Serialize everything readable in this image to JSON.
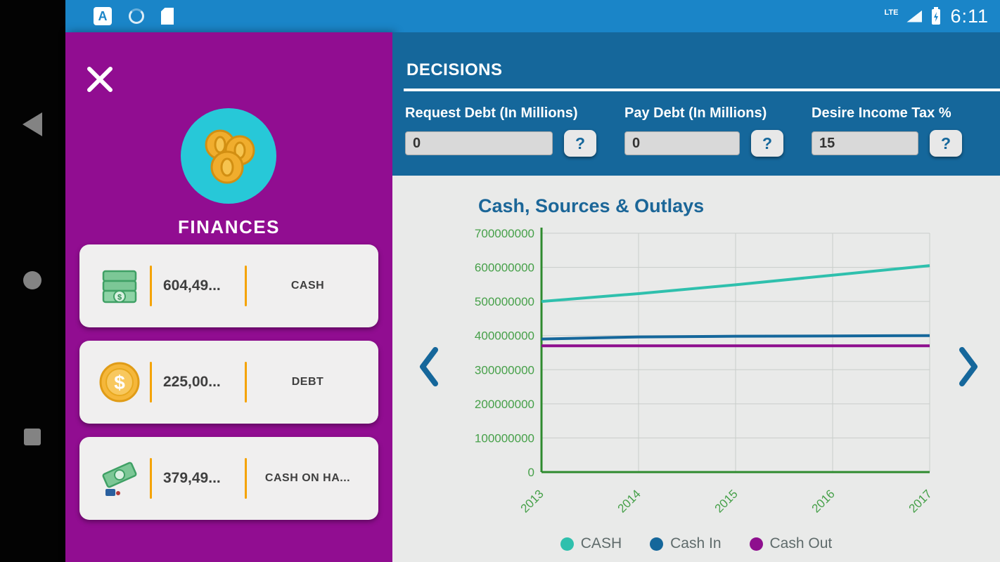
{
  "status_bar": {
    "time": "6:11",
    "network": "LTE"
  },
  "drawer": {
    "title": "FINANCES",
    "cards": [
      {
        "icon": "cash-bills-icon",
        "value": "604,49...",
        "label": "CASH"
      },
      {
        "icon": "debt-coin-icon",
        "value": "225,00...",
        "label": "DEBT"
      },
      {
        "icon": "cash-on-hand-icon",
        "value": "379,49...",
        "label": "CASH ON HA..."
      }
    ]
  },
  "decisions": {
    "title": "DECISIONS",
    "fields": [
      {
        "label": "Request Debt (In Millions)",
        "value": "0",
        "help": "?"
      },
      {
        "label": "Pay Debt (In Millions)",
        "value": "0",
        "help": "?"
      },
      {
        "label": "Desire Income Tax %",
        "value": "15",
        "help": "?"
      }
    ]
  },
  "chart_data": {
    "type": "line",
    "title": "Cash, Sources & Outlays",
    "x": [
      2013,
      2014,
      2015,
      2016,
      2017
    ],
    "series": [
      {
        "name": "CASH",
        "color": "#2fc0ad",
        "values": [
          500000000,
          523000000,
          549000000,
          577000000,
          605000000
        ]
      },
      {
        "name": "Cash In",
        "color": "#15679b",
        "values": [
          390000000,
          396000000,
          398000000,
          399000000,
          400000000
        ]
      },
      {
        "name": "Cash Out",
        "color": "#8e0f8e",
        "values": [
          370000000,
          370000000,
          370000000,
          370000000,
          370000000
        ]
      }
    ],
    "ylim": [
      0,
      700000000
    ],
    "ytick_step": 100000000,
    "grid": true,
    "legend_position": "bottom",
    "axis_color": "#46a049",
    "axis_line_color": "#2e8b2e",
    "grid_color": "#c9cdca"
  },
  "colors": {
    "status_bar_blue": "#1a85c8",
    "decisions_blue": "#15679b",
    "drawer_purple": "#910d91",
    "avatar_teal": "#27c8d8",
    "divider_orange": "#f5a300"
  }
}
